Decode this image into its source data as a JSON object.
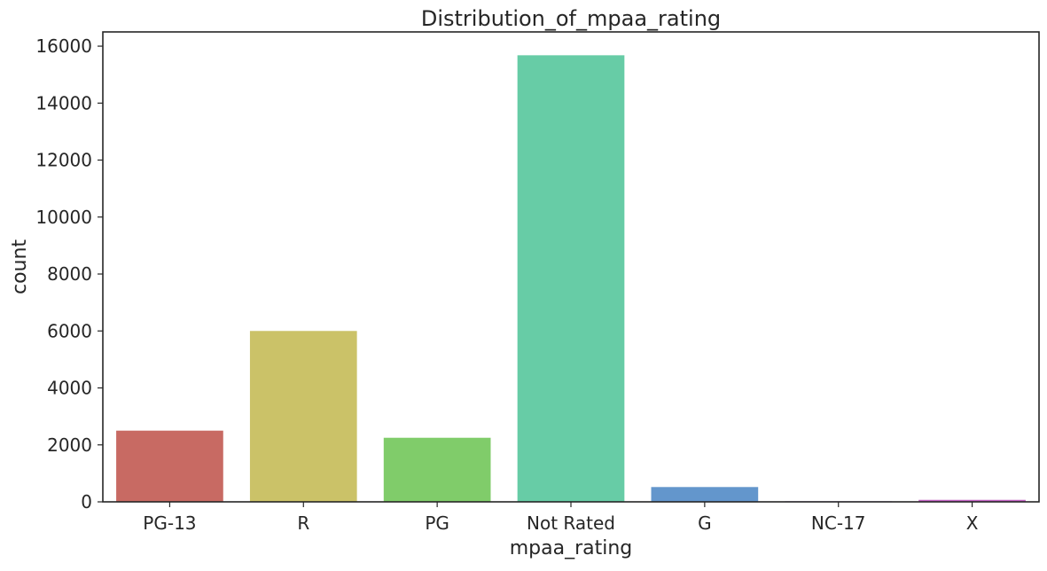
{
  "chart_data": {
    "type": "bar",
    "title": "Distribution_of_mpaa_rating",
    "xlabel": "mpaa_rating",
    "ylabel": "count",
    "categories": [
      "PG-13",
      "R",
      "PG",
      "Not Rated",
      "G",
      "NC-17",
      "X"
    ],
    "values": [
      2500,
      6000,
      2250,
      15680,
      520,
      20,
      70
    ],
    "ylim": [
      0,
      16500
    ],
    "yticks": [
      0,
      2000,
      4000,
      6000,
      8000,
      10000,
      12000,
      14000,
      16000
    ],
    "bar_colors": [
      "#c86a63",
      "#cbc268",
      "#80cc6a",
      "#67cca6",
      "#6396cc",
      "#8a63c9",
      "#c361c4"
    ],
    "grid": false,
    "legend": "none"
  }
}
